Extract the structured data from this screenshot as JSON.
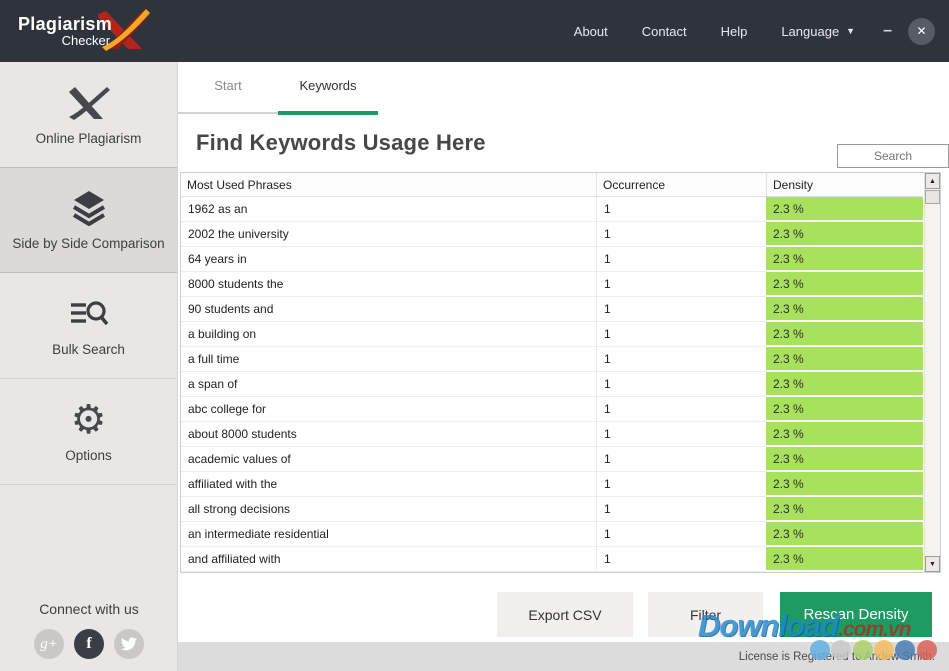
{
  "titlebar": {
    "brand_line1": "Plagiarism",
    "brand_line2": "Checker",
    "menu": {
      "about": "About",
      "contact": "Contact",
      "help": "Help",
      "language": "Language"
    },
    "minimize_glyph": "–",
    "close_glyph": "✕"
  },
  "sidebar": {
    "items": [
      {
        "label": "Online Plagiarism",
        "icon": "x-logo-icon",
        "selected": false
      },
      {
        "label": "Side by Side Comparison",
        "icon": "layers-icon",
        "selected": true
      },
      {
        "label": "Bulk Search",
        "icon": "list-search-icon",
        "selected": false
      },
      {
        "label": "Options",
        "icon": "gear-icon",
        "selected": false
      }
    ],
    "gear_glyph": "⚙",
    "connect_label": "Connect with us",
    "social": [
      "google-plus",
      "facebook",
      "twitter"
    ]
  },
  "tabs": {
    "start": "Start",
    "keywords": "Keywords",
    "active": "Keywords"
  },
  "main": {
    "title": "Find Keywords Usage Here",
    "search_label": "Search"
  },
  "table": {
    "columns": [
      "Most Used Phrases",
      "Occurrence",
      "Density"
    ],
    "rows": [
      {
        "phrase": "1962 as an",
        "occurrence": "1",
        "density": "2.3 %"
      },
      {
        "phrase": "2002 the university",
        "occurrence": "1",
        "density": "2.3 %"
      },
      {
        "phrase": "64 years in",
        "occurrence": "1",
        "density": "2.3 %"
      },
      {
        "phrase": "8000 students the",
        "occurrence": "1",
        "density": "2.3 %"
      },
      {
        "phrase": "90 students and",
        "occurrence": "1",
        "density": "2.3 %"
      },
      {
        "phrase": "a building on",
        "occurrence": "1",
        "density": "2.3 %"
      },
      {
        "phrase": "a full time",
        "occurrence": "1",
        "density": "2.3 %"
      },
      {
        "phrase": "a span of",
        "occurrence": "1",
        "density": "2.3 %"
      },
      {
        "phrase": "abc college for",
        "occurrence": "1",
        "density": "2.3 %"
      },
      {
        "phrase": "about 8000 students",
        "occurrence": "1",
        "density": "2.3 %"
      },
      {
        "phrase": "academic values of",
        "occurrence": "1",
        "density": "2.3 %"
      },
      {
        "phrase": "affiliated with the",
        "occurrence": "1",
        "density": "2.3 %"
      },
      {
        "phrase": "all strong decisions",
        "occurrence": "1",
        "density": "2.3 %"
      },
      {
        "phrase": "an intermediate residential",
        "occurrence": "1",
        "density": "2.3 %"
      },
      {
        "phrase": "and affiliated with",
        "occurrence": "1",
        "density": "2.3 %"
      }
    ]
  },
  "footer": {
    "export_label": "Export CSV",
    "filter_label": "Filter",
    "rescan_label": "Rescan Density",
    "status": "License is Registered to Andew Smith."
  },
  "watermark": {
    "text_main": "Download",
    "text_suffix": ".com.vn",
    "dot_colors": [
      "#62b0e0",
      "#c9c9c9",
      "#abd06b",
      "#f2bc60",
      "#4a7db3",
      "#da6058"
    ]
  },
  "colors": {
    "topbar_bg": "#2f333c",
    "accent_green": "#1e9b62",
    "density_green": "#a8e15c",
    "sidebar_bg": "#e9e7e4",
    "statusbar_bg": "#dcdcdc"
  }
}
